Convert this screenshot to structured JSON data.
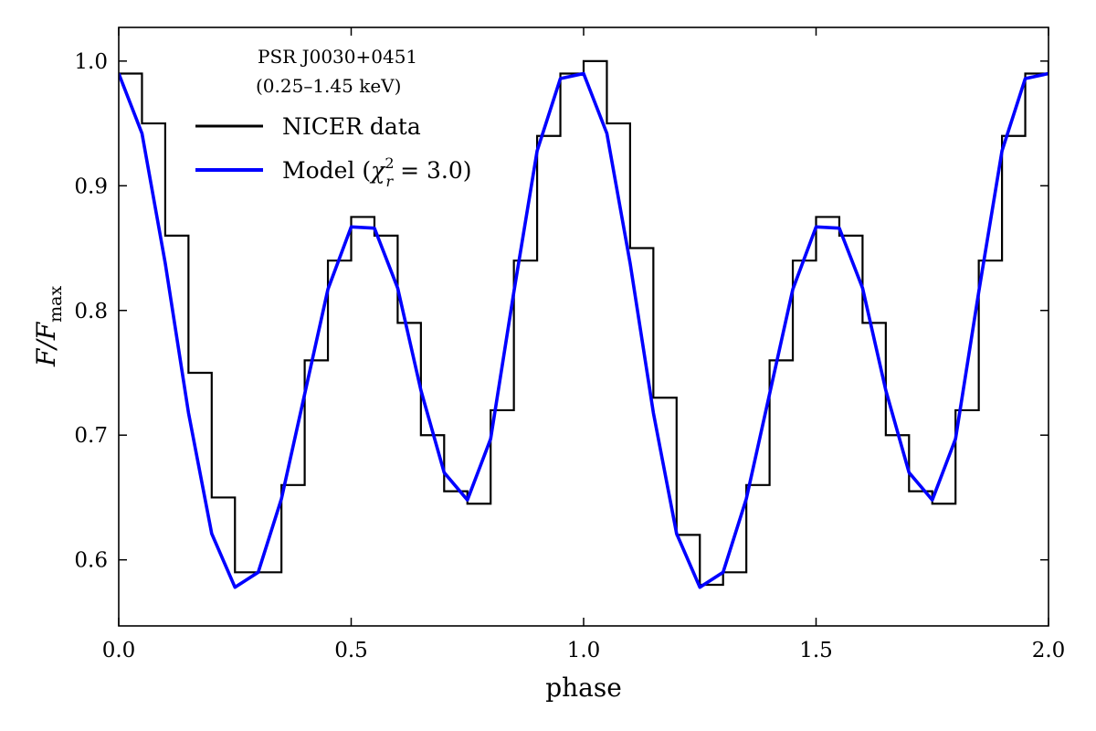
{
  "chart_data": {
    "type": "line",
    "title": "",
    "annotation": {
      "line1": "PSR J0030+0451",
      "line2": "(0.25–1.45 keV)"
    },
    "xlabel": "phase",
    "ylabel": {
      "main": "F/F",
      "sub": "max"
    },
    "xlim": [
      0.0,
      2.0
    ],
    "ylim": [
      0.547,
      1.027
    ],
    "xticks": [
      0.0,
      0.5,
      1.0,
      1.5,
      2.0
    ],
    "xtick_labels": [
      "0.0",
      "0.5",
      "1.0",
      "1.5",
      "2.0"
    ],
    "yticks": [
      0.6,
      0.7,
      0.8,
      0.9,
      1.0
    ],
    "ytick_labels": [
      "0.6",
      "0.7",
      "0.8",
      "0.9",
      "1.0"
    ],
    "grid": false,
    "legend_position": "top-left",
    "series": [
      {
        "name": "NICER data",
        "legend_label": "NICER data",
        "style": "step",
        "color": "#000000",
        "x": [
          0.0,
          0.05,
          0.1,
          0.15,
          0.2,
          0.25,
          0.3,
          0.35,
          0.4,
          0.45,
          0.5,
          0.55,
          0.6,
          0.65,
          0.7,
          0.75,
          0.8,
          0.85,
          0.9,
          0.95,
          1.0,
          1.05,
          1.1,
          1.15,
          1.2,
          1.25,
          1.3,
          1.35,
          1.4,
          1.45,
          1.5,
          1.55,
          1.6,
          1.65,
          1.7,
          1.75,
          1.8,
          1.85,
          1.9,
          1.95,
          2.0
        ],
        "y": [
          0.99,
          0.95,
          0.86,
          0.75,
          0.65,
          0.59,
          0.59,
          0.66,
          0.76,
          0.84,
          0.875,
          0.86,
          0.79,
          0.7,
          0.655,
          0.645,
          0.72,
          0.84,
          0.94,
          0.99,
          1.0,
          0.95,
          0.85,
          0.73,
          0.62,
          0.58,
          0.59,
          0.66,
          0.76,
          0.84,
          0.875,
          0.86,
          0.79,
          0.7,
          0.655,
          0.645,
          0.72,
          0.84,
          0.94,
          0.99,
          1.0
        ]
      },
      {
        "name": "Model (χr² = 3.0)",
        "legend_label": {
          "prefix": "Model (",
          "chi": "χ",
          "sup": "2",
          "sub": "r",
          "suffix": " = 3.0)"
        },
        "style": "line",
        "color": "#0000ff",
        "x": [
          0.0,
          0.05,
          0.1,
          0.15,
          0.2,
          0.25,
          0.3,
          0.35,
          0.4,
          0.45,
          0.5,
          0.55,
          0.6,
          0.65,
          0.7,
          0.75,
          0.8,
          0.85,
          0.9,
          0.95,
          1.0,
          1.05,
          1.1,
          1.15,
          1.2,
          1.25,
          1.3,
          1.35,
          1.4,
          1.45,
          1.5,
          1.55,
          1.6,
          1.65,
          1.7,
          1.75,
          1.8,
          1.85,
          1.9,
          1.95,
          2.0
        ],
        "y": [
          0.99,
          0.942,
          0.838,
          0.718,
          0.621,
          0.578,
          0.59,
          0.649,
          0.733,
          0.817,
          0.867,
          0.866,
          0.818,
          0.736,
          0.67,
          0.648,
          0.697,
          0.815,
          0.928,
          0.986,
          0.99,
          0.942,
          0.838,
          0.718,
          0.621,
          0.578,
          0.59,
          0.649,
          0.733,
          0.817,
          0.867,
          0.866,
          0.818,
          0.736,
          0.67,
          0.648,
          0.697,
          0.815,
          0.928,
          0.986,
          0.99
        ]
      }
    ]
  }
}
